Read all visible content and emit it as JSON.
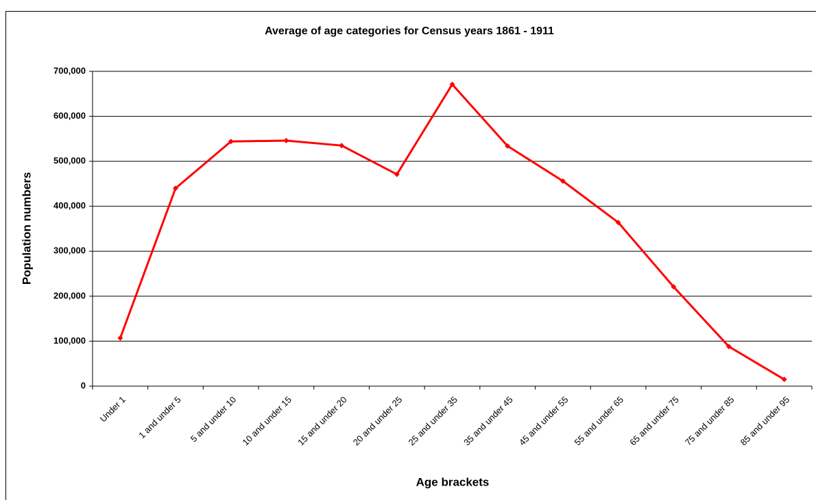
{
  "chart_data": {
    "type": "line",
    "title": "Average of age categories for Census years 1861 - 1911",
    "x_label": "Age brackets",
    "y_label": "Population numbers",
    "categories": [
      "Under 1",
      "1 and under 5",
      "5 and under 10",
      "10 and under 15",
      "15 and under 20",
      "20 and under 25",
      "25 and under 35",
      "35 and under 45",
      "45 and under 55",
      "55 and under 65",
      "65 and under 75",
      "75 and under 85",
      "85 and under 95"
    ],
    "values": [
      107000,
      440000,
      544000,
      546000,
      535000,
      471000,
      671000,
      534000,
      456000,
      364000,
      221000,
      88000,
      15000
    ],
    "color": "#ff0000",
    "ylim": [
      0,
      700000
    ],
    "yticks": [
      0,
      {
        "value": 100000,
        "label": "100,000"
      },
      {
        "value": 200000,
        "label": "200,000"
      },
      {
        "value": 300000,
        "label": "300,000"
      },
      {
        "value": 400000,
        "label": "400,000"
      },
      {
        "value": 500000,
        "label": "500,000"
      },
      {
        "value": 600000,
        "label": "600,000"
      },
      {
        "value": 700000,
        "label": "700,000"
      }
    ],
    "grid": true
  }
}
